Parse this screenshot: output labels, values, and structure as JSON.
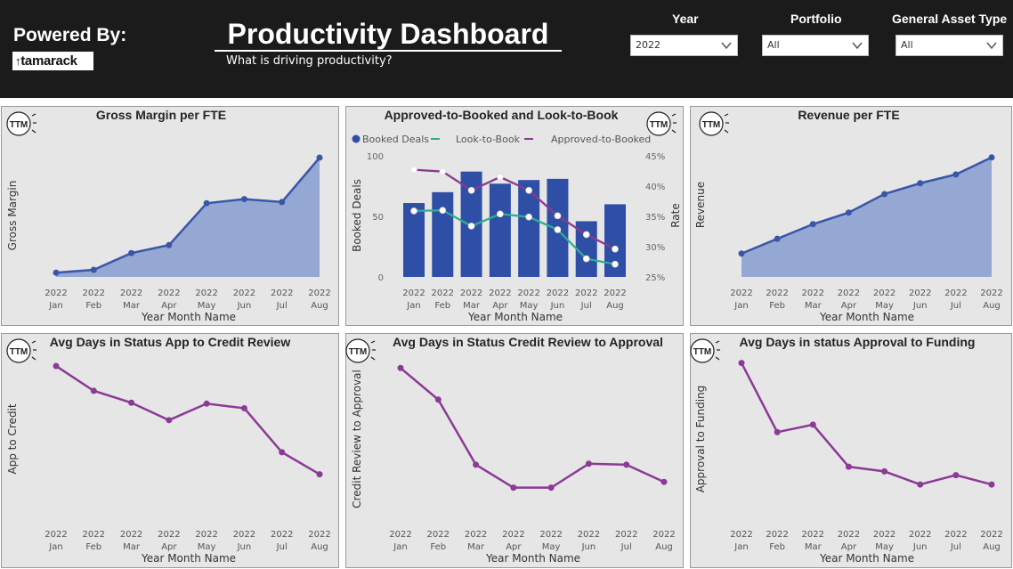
{
  "header": {
    "powered_by": "Powered By:",
    "logo_text": "tamarack",
    "title": "Productivity Dashboard",
    "subtitle": "What is driving productivity?"
  },
  "filters": [
    {
      "label": "Year",
      "value": "2022"
    },
    {
      "label": "Portfolio",
      "value": "All"
    },
    {
      "label": "General Asset Type",
      "value": "All"
    }
  ],
  "ttm_badge": "TTM",
  "icons": {
    "chevron": "chevron-down-icon",
    "ttm": "ttm-badge-icon"
  },
  "colors": {
    "accent": "#3a56a8",
    "area": "#95a7d3",
    "purple": "#8b3a96",
    "teal": "#2fae8e",
    "magenta": "#8a3a8e",
    "bar": "#2f4fa7"
  },
  "chart_data": [
    {
      "id": "gm",
      "type": "area",
      "title": "Gross Margin per FTE",
      "xlabel": "Year Month Name",
      "ylabel": "Gross Margin",
      "categories": [
        "Jan",
        "Feb",
        "Mar",
        "Apr",
        "May",
        "Jun",
        "Jul",
        "Aug"
      ],
      "year": "2022",
      "values": [
        1.0,
        1.7,
        5.7,
        7.6,
        17.6,
        18.6,
        17.9,
        28.5
      ],
      "ylim": [
        0,
        30
      ]
    },
    {
      "id": "ab",
      "type": "bar",
      "title": "Approved-to-Booked and Look-to-Book",
      "xlabel": "Year Month Name",
      "ylabel": "Booked Deals",
      "ylabel_right": "Rate",
      "categories": [
        "Jan",
        "Feb",
        "Mar",
        "Apr",
        "May",
        "Jun",
        "Jul",
        "Aug"
      ],
      "year": "2022",
      "legend": [
        "Booked Deals",
        "Look-to-Book",
        "Approved-to-Booked"
      ],
      "y_ticks": [
        0,
        50,
        100
      ],
      "ylim": [
        0,
        100
      ],
      "y2_ticks": [
        "25%",
        "30%",
        "35%",
        "40%",
        "45%"
      ],
      "y2lim": [
        25,
        45
      ],
      "series": [
        {
          "name": "Booked Deals",
          "kind": "bar",
          "values": [
            61,
            70,
            87,
            77,
            80,
            81,
            46,
            60
          ]
        },
        {
          "name": "Look-to-Book",
          "kind": "line",
          "values": [
            35.9,
            36.0,
            33.4,
            35.4,
            34.9,
            32.8,
            28.0,
            27.1
          ]
        },
        {
          "name": "Approved-to-Booked",
          "kind": "line",
          "values": [
            42.7,
            42.4,
            39.3,
            41.5,
            39.3,
            35.1,
            32.0,
            29.6
          ]
        }
      ]
    },
    {
      "id": "rev",
      "type": "area",
      "title": "Revenue per FTE",
      "xlabel": "Year Month Name",
      "ylabel": "Revenue",
      "categories": [
        "Jan",
        "Feb",
        "Mar",
        "Apr",
        "May",
        "Jun",
        "Jul",
        "Aug"
      ],
      "year": "2022",
      "values": [
        20.5,
        33.4,
        46.2,
        56.4,
        72.6,
        82.1,
        89.8,
        104.7
      ],
      "ylim": [
        0,
        110
      ]
    },
    {
      "id": "app",
      "type": "line",
      "title": "Avg Days in Status App to Credit Review",
      "xlabel": "Year Month Name",
      "ylabel": "App to Credit",
      "categories": [
        "Jan",
        "Feb",
        "Mar",
        "Apr",
        "May",
        "Jun",
        "Jul",
        "Aug"
      ],
      "year": "2022",
      "values": [
        19.8,
        17.1,
        15.8,
        13.9,
        15.7,
        15.2,
        10.4,
        8.0
      ],
      "ylim": [
        0,
        20
      ]
    },
    {
      "id": "cra",
      "type": "line",
      "title": "Avg Days in Status Credit Review to Approval",
      "xlabel": "Year Month Name",
      "ylabel": "Credit Review to Approval",
      "categories": [
        "Jan",
        "Feb",
        "Mar",
        "Apr",
        "May",
        "Jun",
        "Jul",
        "Aug"
      ],
      "year": "2022",
      "values": [
        18.3,
        15.0,
        8.2,
        5.8,
        5.8,
        8.3,
        8.2,
        6.4
      ],
      "ylim": [
        0,
        20
      ]
    },
    {
      "id": "atf",
      "type": "line",
      "title": "Avg Days in status Approval to Funding",
      "xlabel": "Year Month Name",
      "ylabel": "Approval to Funding",
      "categories": [
        "Jan",
        "Feb",
        "Mar",
        "Apr",
        "May",
        "Jun",
        "Jul",
        "Aug"
      ],
      "year": "2022",
      "values": [
        18.8,
        11.4,
        12.2,
        7.7,
        7.2,
        5.8,
        6.8,
        5.8
      ],
      "ylim": [
        0,
        20
      ]
    }
  ]
}
